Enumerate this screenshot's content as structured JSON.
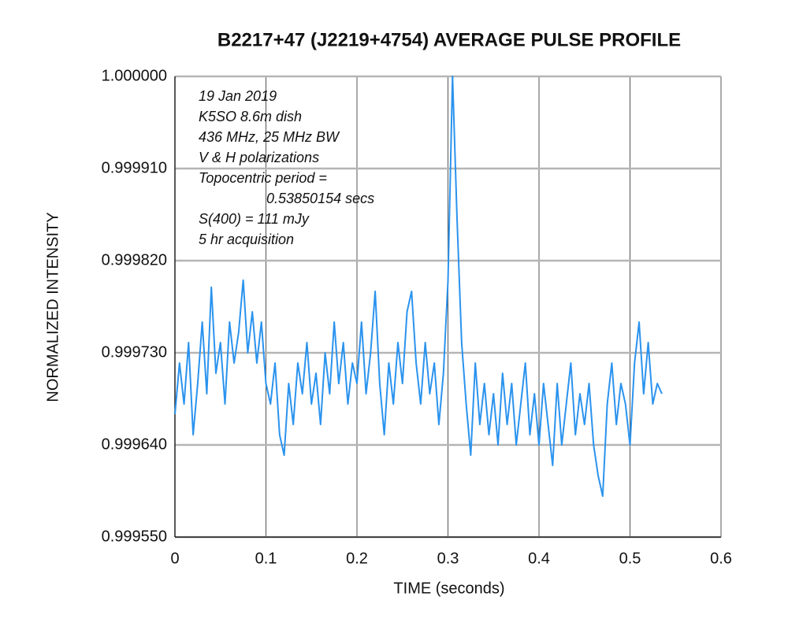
{
  "chart_data": {
    "type": "line",
    "title": "B2217+47 (J2219+4754) AVERAGE PULSE PROFILE",
    "xlabel": "TIME (seconds)",
    "ylabel": "NORMALIZED INTENSITY",
    "annotations": [
      "19 Jan 2019",
      "K5SO 8.6m dish",
      "436 MHz, 25 MHz BW",
      "V & H polarizations",
      "Topocentric period =",
      "0.53850154 secs",
      "S(400) = 111 mJy",
      "5 hr acquisition"
    ],
    "color": "#2b93ee",
    "grid": true,
    "xlim": [
      0,
      0.6
    ],
    "xticks": [
      0,
      0.1,
      0.2,
      0.3,
      0.4,
      0.5,
      0.6
    ],
    "ylim": [
      0.99955,
      1.0
    ],
    "yticks": [
      {
        "value": 0.99955,
        "label": "0.999550"
      },
      {
        "value": 0.99964,
        "label": "0.999640"
      },
      {
        "value": 0.99973,
        "label": "0.999730"
      },
      {
        "value": 0.99982,
        "label": "0.999820"
      },
      {
        "value": 0.99991,
        "label": "0.999910"
      },
      {
        "value": 1.0,
        "label": "1.000000"
      }
    ],
    "x": [
      0,
      0.005,
      0.01,
      0.015,
      0.02,
      0.025,
      0.03,
      0.035,
      0.04,
      0.045,
      0.05,
      0.055,
      0.06,
      0.065,
      0.07,
      0.075,
      0.08,
      0.085,
      0.09,
      0.095,
      0.1,
      0.105,
      0.11,
      0.115,
      0.12,
      0.125,
      0.13,
      0.135,
      0.14,
      0.145,
      0.15,
      0.155,
      0.16,
      0.165,
      0.17,
      0.175,
      0.18,
      0.185,
      0.19,
      0.195,
      0.2,
      0.205,
      0.21,
      0.215,
      0.22,
      0.225,
      0.23,
      0.235,
      0.24,
      0.245,
      0.25,
      0.255,
      0.26,
      0.265,
      0.27,
      0.275,
      0.28,
      0.285,
      0.29,
      0.295,
      0.3,
      0.305,
      0.31,
      0.315,
      0.32,
      0.325,
      0.33,
      0.335,
      0.34,
      0.345,
      0.35,
      0.355,
      0.36,
      0.365,
      0.37,
      0.375,
      0.38,
      0.385,
      0.39,
      0.395,
      0.4,
      0.405,
      0.41,
      0.415,
      0.42,
      0.425,
      0.43,
      0.435,
      0.44,
      0.445,
      0.45,
      0.455,
      0.46,
      0.465,
      0.47,
      0.475,
      0.48,
      0.485,
      0.49,
      0.495,
      0.5,
      0.505,
      0.51,
      0.515,
      0.52,
      0.525,
      0.53,
      0.535
    ],
    "values": [
      0.99967,
      0.99972,
      0.99968,
      0.99974,
      0.99965,
      0.9997,
      0.99976,
      0.99969,
      0.999794,
      0.99971,
      0.99974,
      0.99968,
      0.99976,
      0.99972,
      0.99975,
      0.999801,
      0.99973,
      0.99977,
      0.99972,
      0.99976,
      0.9997,
      0.99968,
      0.99972,
      0.99965,
      0.99963,
      0.9997,
      0.99966,
      0.99972,
      0.99969,
      0.99974,
      0.99968,
      0.99971,
      0.99966,
      0.99973,
      0.99969,
      0.99976,
      0.9997,
      0.99974,
      0.99968,
      0.99972,
      0.9997,
      0.99976,
      0.99969,
      0.99973,
      0.99979,
      0.9997,
      0.99965,
      0.99972,
      0.99968,
      0.99974,
      0.9997,
      0.99977,
      0.99979,
      0.99972,
      0.99968,
      0.99974,
      0.99969,
      0.99972,
      0.99966,
      0.99971,
      0.9998,
      1.0,
      0.99986,
      0.99974,
      0.99968,
      0.99963,
      0.99972,
      0.99966,
      0.9997,
      0.99965,
      0.99969,
      0.99964,
      0.99971,
      0.99966,
      0.9997,
      0.99964,
      0.99968,
      0.99972,
      0.99965,
      0.99969,
      0.99964,
      0.9997,
      0.99966,
      0.99962,
      0.9997,
      0.99964,
      0.99968,
      0.99972,
      0.99965,
      0.99969,
      0.99966,
      0.9997,
      0.99964,
      0.99961,
      0.99959,
      0.99968,
      0.99972,
      0.99966,
      0.9997,
      0.99968,
      0.99964,
      0.99972,
      0.99976,
      0.99969,
      0.99974,
      0.99968,
      0.9997,
      0.99969
    ]
  }
}
